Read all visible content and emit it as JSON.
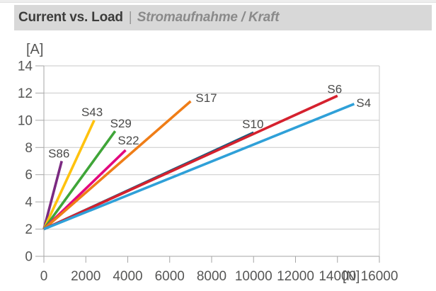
{
  "header": {
    "title": "Current vs. Load",
    "separator": "|",
    "subtitle": "Stromaufnahme / Kraft",
    "bar_color": "#d8d8d8"
  },
  "chart_data": {
    "type": "line",
    "title": "Current vs. Load | Stromaufnahme / Kraft",
    "xlabel": "[N]",
    "ylabel": "[A]",
    "xlim": [
      0,
      16000
    ],
    "ylim": [
      0,
      14
    ],
    "x_ticks": [
      0,
      2000,
      4000,
      6000,
      8000,
      10000,
      12000,
      14000,
      16000
    ],
    "y_ticks": [
      0,
      2,
      4,
      6,
      8,
      10,
      12,
      14
    ],
    "grid": "horizontal gridlines on; left+bottom axes; right border; no legend box (inline series labels)",
    "series": [
      {
        "name": "S86",
        "color": "#7b2a81",
        "points": [
          [
            0,
            2
          ],
          [
            850,
            7.0
          ]
        ],
        "label_anchor": "middle",
        "label_offset": [
          -4,
          -5
        ]
      },
      {
        "name": "S43",
        "color": "#ffc20e",
        "points": [
          [
            0,
            2
          ],
          [
            2400,
            10.0
          ]
        ],
        "label_anchor": "middle",
        "label_offset": [
          -3,
          -6
        ]
      },
      {
        "name": "S29",
        "color": "#3fa538",
        "points": [
          [
            0,
            2
          ],
          [
            3400,
            9.2
          ]
        ],
        "label_anchor": "middle",
        "label_offset": [
          8,
          -5
        ]
      },
      {
        "name": "S22",
        "color": "#e2077e",
        "points": [
          [
            0,
            2
          ],
          [
            3900,
            7.8
          ]
        ],
        "label_anchor": "middle",
        "label_offset": [
          4,
          -8
        ]
      },
      {
        "name": "S17",
        "color": "#ef7d17",
        "points": [
          [
            0,
            2
          ],
          [
            7000,
            11.4
          ]
        ],
        "label_anchor": "start",
        "label_offset": [
          7,
          1
        ]
      },
      {
        "name": "S10",
        "color": "#1a5b7d",
        "points": [
          [
            0,
            2
          ],
          [
            10000,
            9.1
          ]
        ],
        "label_anchor": "middle",
        "label_offset": [
          -1,
          -6
        ]
      },
      {
        "name": "S6",
        "color": "#d5212e",
        "points": [
          [
            0,
            2
          ],
          [
            14000,
            11.8
          ]
        ],
        "label_anchor": "middle",
        "label_offset": [
          -4,
          -4
        ]
      },
      {
        "name": "S4",
        "color": "#2fa0d8",
        "points": [
          [
            0,
            2
          ],
          [
            14800,
            11.2
          ]
        ],
        "label_anchor": "start",
        "label_offset": [
          3,
          4
        ]
      }
    ],
    "grid_color": "#c9c9c9",
    "axis_color": "#a6a6a6",
    "text_color": "#565655",
    "series_label_color": "#4a4a49"
  }
}
